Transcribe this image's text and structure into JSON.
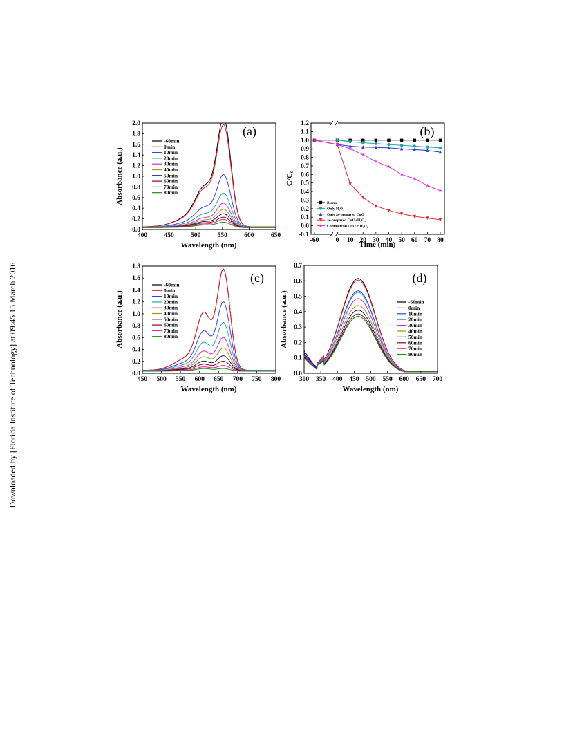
{
  "side_note": "Downloaded by [Florida Institute of Technology] at 09:45 15 March 2016",
  "series_colors": [
    "#000000",
    "#e8202a",
    "#3a3aff",
    "#1fa6a6",
    "#e020e0",
    "#9a9a00",
    "#10108a",
    "#8a0a0a",
    "#e0207a",
    "#1a8a1a"
  ],
  "chart_data": [
    {
      "type": "line",
      "panel_label": "(a)",
      "xlabel": "Wavelength (nm)",
      "ylabel": "Absorbance (a.u.)",
      "xlim": [
        400,
        650
      ],
      "ylim": [
        0.0,
        2.0
      ],
      "xticks": [
        "400",
        "450",
        "500",
        "550",
        "600",
        "650"
      ],
      "yticks": [
        "0.0",
        "0.2",
        "0.4",
        "0.6",
        "0.8",
        "1.0",
        "1.2",
        "1.4",
        "1.6",
        "1.8",
        "2.0"
      ],
      "legend": [
        "-60min",
        "0min",
        "10min",
        "20min",
        "30min",
        "40min",
        "50min",
        "60min",
        "70min",
        "80min"
      ],
      "legend_position": "top-left",
      "peaks": [
        1.99,
        1.87,
        0.98,
        0.65,
        0.47,
        0.36,
        0.28,
        0.22,
        0.18,
        0.13
      ],
      "peak_x": 553,
      "baseline_start": [
        0.05,
        0.05,
        0.045,
        0.045,
        0.04,
        0.04,
        0.04,
        0.04,
        0.035,
        0.035
      ]
    },
    {
      "type": "line",
      "panel_label": "(b)",
      "xlabel": "Time (min)",
      "ylabel": "C/C₀",
      "xticks": [
        "-60",
        "0",
        "10",
        "20",
        "30",
        "40",
        "50",
        "60",
        "70",
        "80"
      ],
      "yticks": [
        "-0.1",
        "0.0",
        "0.1",
        "0.2",
        "0.3",
        "0.4",
        "0.5",
        "0.6",
        "0.7",
        "0.8",
        "0.9",
        "1.0",
        "1.1",
        "1.2"
      ],
      "ylim": [
        -0.1,
        1.2
      ],
      "legend_position": "bottom-left",
      "x": [
        -60,
        0,
        10,
        20,
        30,
        40,
        50,
        60,
        70,
        80
      ],
      "series": [
        {
          "name": "Blank",
          "values": [
            1.0,
            1.0,
            1.0,
            1.0,
            1.0,
            1.0,
            1.0,
            1.0,
            1.0,
            1.0
          ]
        },
        {
          "name": "Only H₂O₂",
          "values": [
            null,
            1.0,
            0.98,
            0.97,
            0.96,
            0.95,
            0.94,
            0.93,
            0.92,
            0.91
          ]
        },
        {
          "name": "Only as-prepared CuO",
          "values": [
            1.0,
            0.95,
            0.93,
            0.92,
            0.915,
            0.91,
            0.9,
            0.89,
            0.88,
            0.86
          ]
        },
        {
          "name": "as-prepared CuO+H₂O₂",
          "values": [
            1.0,
            0.95,
            0.49,
            0.33,
            0.23,
            0.18,
            0.14,
            0.11,
            0.09,
            0.07
          ]
        },
        {
          "name": "Commercial CuO + H₂O₂",
          "values": [
            1.0,
            0.95,
            0.9,
            0.83,
            0.75,
            0.69,
            0.6,
            0.55,
            0.47,
            0.41
          ]
        }
      ]
    },
    {
      "type": "line",
      "panel_label": "(c)",
      "xlabel": "Wavelength (nm)",
      "ylabel": "Absorbance (a.u.)",
      "xlim": [
        450,
        800
      ],
      "ylim": [
        0.0,
        1.8
      ],
      "xticks": [
        "450",
        "500",
        "550",
        "600",
        "650",
        "700",
        "750",
        "800"
      ],
      "yticks": [
        "0.0",
        "0.2",
        "0.4",
        "0.6",
        "0.8",
        "1.0",
        "1.2",
        "1.4",
        "1.6",
        "1.8"
      ],
      "legend": [
        "-60min",
        "0min",
        "10min",
        "20min",
        "30min",
        "40min",
        "50min",
        "60min",
        "70min",
        "80min"
      ],
      "legend_position": "top-left",
      "peaks": [
        1.72,
        1.72,
        1.18,
        0.84,
        0.59,
        0.42,
        0.29,
        0.2,
        0.13,
        0.08
      ],
      "peak_x": 663,
      "baseline_start": [
        0.05,
        0.05,
        0.045,
        0.045,
        0.04,
        0.04,
        0.04,
        0.04,
        0.035,
        0.035
      ]
    },
    {
      "type": "line",
      "panel_label": "(d)",
      "xlabel": "Wavelength (nm)",
      "ylabel": "Absorbance (a.u.)",
      "xlim": [
        300,
        700
      ],
      "ylim": [
        0.0,
        0.7
      ],
      "xticks": [
        "300",
        "350",
        "400",
        "450",
        "500",
        "550",
        "600",
        "650",
        "700"
      ],
      "yticks": [
        "0.0",
        "0.1",
        "0.2",
        "0.3",
        "0.4",
        "0.5",
        "0.6",
        "0.7"
      ],
      "legend": [
        "-60min",
        "0min",
        "10min",
        "20min",
        "30min",
        "40min",
        "50min",
        "60min",
        "70min",
        "80min"
      ],
      "legend_position": "right",
      "peaks": [
        0.615,
        0.605,
        0.535,
        0.525,
        0.485,
        0.44,
        0.41,
        0.385,
        0.37,
        0.37
      ],
      "peak_x": 462,
      "baseline_start": [
        0.14,
        0.12,
        0.13,
        0.12,
        0.12,
        0.11,
        0.16,
        0.12,
        0.11,
        0.11
      ]
    }
  ]
}
